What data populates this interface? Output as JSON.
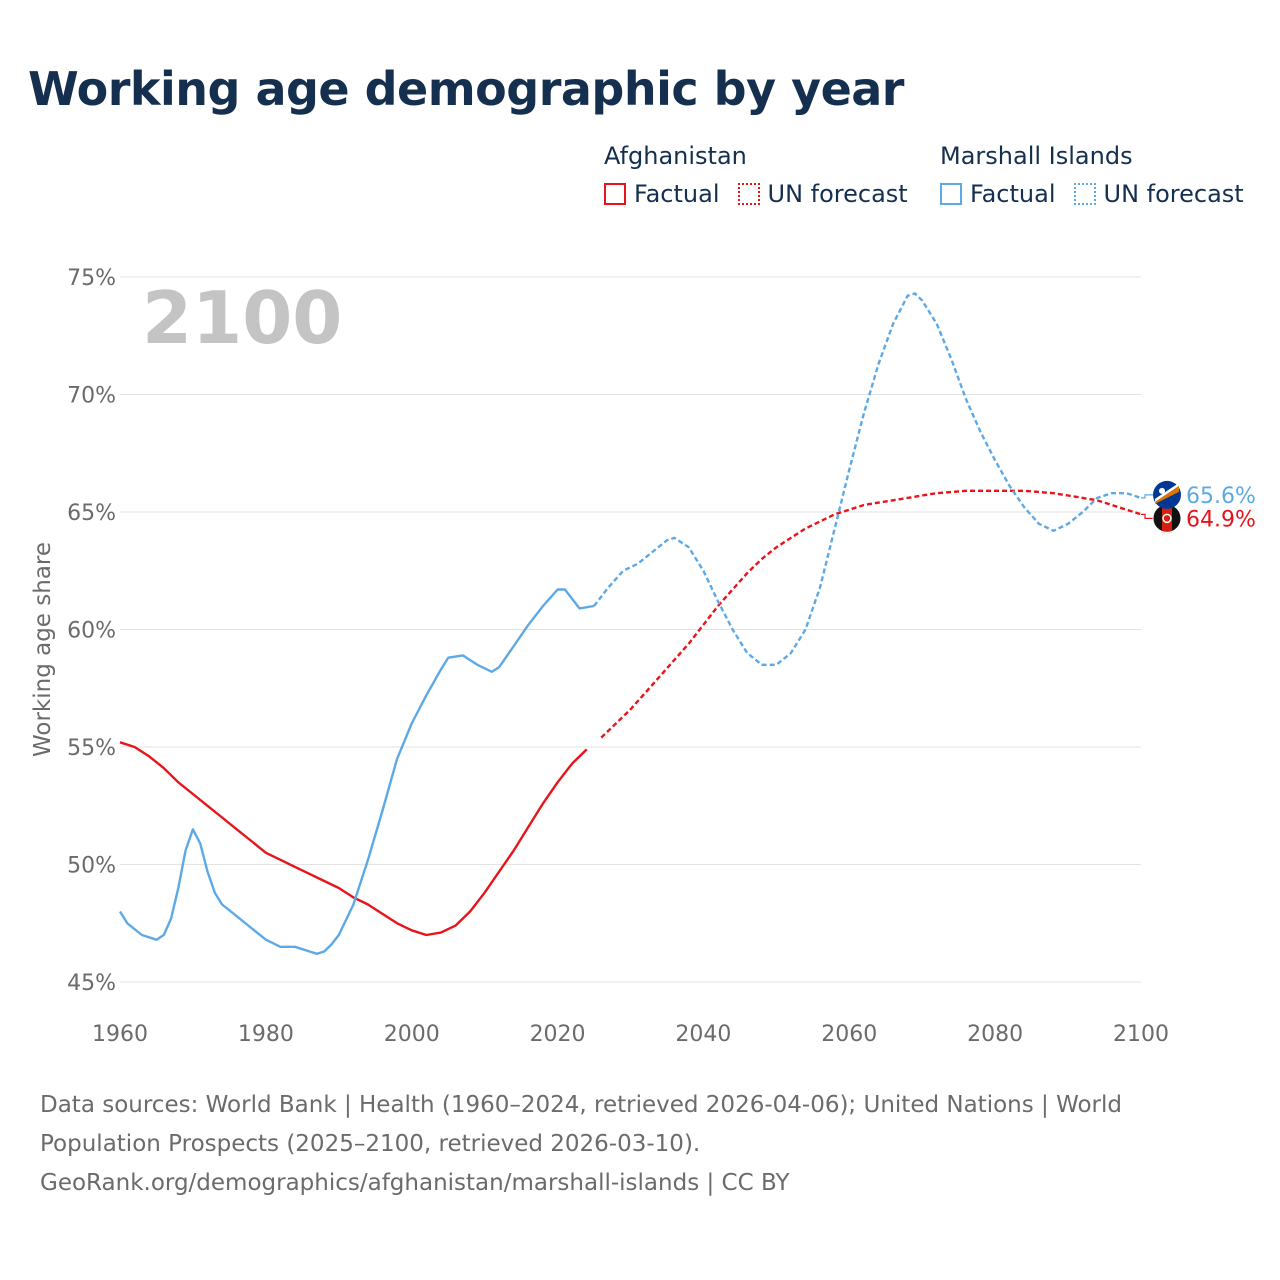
{
  "title": "Working age demographic by year",
  "legend": {
    "groups": [
      {
        "name": "Afghanistan",
        "factual": "Factual",
        "forecast": "UN forecast",
        "color": "#e8141b"
      },
      {
        "name": "Marshall Islands",
        "factual": "Factual",
        "forecast": "UN forecast",
        "color": "#5da9e6"
      }
    ]
  },
  "year_watermark": "2100",
  "sources": {
    "line1": "Data sources: World Bank | Health (1960–2024, retrieved 2026-04-06); United Nations | World",
    "line2": "Population Prospects (2025–2100, retrieved 2026-03-10).",
    "line3": "GeoRank.org/demographics/afghanistan/marshall-islands | CC BY"
  },
  "chart_data": {
    "type": "line",
    "ylabel": "Working age share",
    "xlabel": "",
    "xlim": [
      1960,
      2100
    ],
    "ylim": [
      45,
      75
    ],
    "x_ticks": [
      "1960",
      "1980",
      "2000",
      "2020",
      "2040",
      "2060",
      "2080",
      "2100"
    ],
    "y_ticks": [
      "45%",
      "50%",
      "55%",
      "60%",
      "65%",
      "70%",
      "75%"
    ],
    "forecast_start": 2025,
    "series": [
      {
        "name": "Afghanistan",
        "color": "#e8141b",
        "end_label": "64.9%",
        "points": [
          [
            1960,
            55.2
          ],
          [
            1962,
            55.0
          ],
          [
            1964,
            54.6
          ],
          [
            1966,
            54.1
          ],
          [
            1968,
            53.5
          ],
          [
            1970,
            53.0
          ],
          [
            1972,
            52.5
          ],
          [
            1974,
            52.0
          ],
          [
            1976,
            51.5
          ],
          [
            1978,
            51.0
          ],
          [
            1980,
            50.5
          ],
          [
            1982,
            50.2
          ],
          [
            1984,
            49.9
          ],
          [
            1986,
            49.6
          ],
          [
            1988,
            49.3
          ],
          [
            1990,
            49.0
          ],
          [
            1992,
            48.6
          ],
          [
            1994,
            48.3
          ],
          [
            1996,
            47.9
          ],
          [
            1998,
            47.5
          ],
          [
            2000,
            47.2
          ],
          [
            2002,
            47.0
          ],
          [
            2004,
            47.1
          ],
          [
            2006,
            47.4
          ],
          [
            2008,
            48.0
          ],
          [
            2010,
            48.8
          ],
          [
            2012,
            49.7
          ],
          [
            2014,
            50.6
          ],
          [
            2016,
            51.6
          ],
          [
            2018,
            52.6
          ],
          [
            2020,
            53.5
          ],
          [
            2022,
            54.3
          ],
          [
            2024,
            54.9
          ],
          [
            2026,
            55.4
          ],
          [
            2028,
            56.0
          ],
          [
            2030,
            56.6
          ],
          [
            2032,
            57.3
          ],
          [
            2034,
            58.0
          ],
          [
            2036,
            58.7
          ],
          [
            2038,
            59.4
          ],
          [
            2040,
            60.2
          ],
          [
            2042,
            61.0
          ],
          [
            2044,
            61.7
          ],
          [
            2046,
            62.4
          ],
          [
            2048,
            63.0
          ],
          [
            2050,
            63.5
          ],
          [
            2052,
            63.9
          ],
          [
            2054,
            64.3
          ],
          [
            2056,
            64.6
          ],
          [
            2058,
            64.9
          ],
          [
            2060,
            65.1
          ],
          [
            2062,
            65.3
          ],
          [
            2064,
            65.4
          ],
          [
            2066,
            65.5
          ],
          [
            2068,
            65.6
          ],
          [
            2070,
            65.7
          ],
          [
            2072,
            65.8
          ],
          [
            2074,
            65.85
          ],
          [
            2076,
            65.9
          ],
          [
            2078,
            65.9
          ],
          [
            2080,
            65.9
          ],
          [
            2082,
            65.9
          ],
          [
            2084,
            65.9
          ],
          [
            2086,
            65.85
          ],
          [
            2088,
            65.8
          ],
          [
            2090,
            65.7
          ],
          [
            2092,
            65.6
          ],
          [
            2094,
            65.5
          ],
          [
            2096,
            65.3
          ],
          [
            2098,
            65.1
          ],
          [
            2100,
            64.9
          ]
        ]
      },
      {
        "name": "Marshall Islands",
        "color": "#5da9e6",
        "end_label": "65.6%",
        "points": [
          [
            1960,
            48.0
          ],
          [
            1961,
            47.5
          ],
          [
            1963,
            47.0
          ],
          [
            1965,
            46.8
          ],
          [
            1966,
            47.0
          ],
          [
            1967,
            47.7
          ],
          [
            1968,
            49.0
          ],
          [
            1969,
            50.6
          ],
          [
            1970,
            51.5
          ],
          [
            1971,
            50.9
          ],
          [
            1972,
            49.7
          ],
          [
            1973,
            48.8
          ],
          [
            1974,
            48.3
          ],
          [
            1976,
            47.8
          ],
          [
            1978,
            47.3
          ],
          [
            1980,
            46.8
          ],
          [
            1982,
            46.5
          ],
          [
            1984,
            46.5
          ],
          [
            1986,
            46.3
          ],
          [
            1987,
            46.2
          ],
          [
            1988,
            46.3
          ],
          [
            1989,
            46.6
          ],
          [
            1990,
            47.0
          ],
          [
            1992,
            48.3
          ],
          [
            1994,
            50.2
          ],
          [
            1996,
            52.3
          ],
          [
            1998,
            54.5
          ],
          [
            2000,
            56.0
          ],
          [
            2002,
            57.2
          ],
          [
            2004,
            58.3
          ],
          [
            2005,
            58.8
          ],
          [
            2007,
            58.9
          ],
          [
            2009,
            58.5
          ],
          [
            2011,
            58.2
          ],
          [
            2012,
            58.4
          ],
          [
            2014,
            59.3
          ],
          [
            2016,
            60.2
          ],
          [
            2018,
            61.0
          ],
          [
            2020,
            61.7
          ],
          [
            2021,
            61.7
          ],
          [
            2023,
            60.9
          ],
          [
            2025,
            61.0
          ],
          [
            2027,
            61.8
          ],
          [
            2029,
            62.5
          ],
          [
            2031,
            62.8
          ],
          [
            2033,
            63.3
          ],
          [
            2035,
            63.8
          ],
          [
            2036,
            63.9
          ],
          [
            2038,
            63.5
          ],
          [
            2040,
            62.5
          ],
          [
            2042,
            61.2
          ],
          [
            2044,
            60.0
          ],
          [
            2046,
            59.0
          ],
          [
            2048,
            58.5
          ],
          [
            2050,
            58.5
          ],
          [
            2052,
            59.0
          ],
          [
            2054,
            60.0
          ],
          [
            2056,
            61.8
          ],
          [
            2058,
            64.3
          ],
          [
            2060,
            66.8
          ],
          [
            2062,
            69.2
          ],
          [
            2064,
            71.3
          ],
          [
            2066,
            73.0
          ],
          [
            2068,
            74.2
          ],
          [
            2069,
            74.3
          ],
          [
            2070,
            74.0
          ],
          [
            2072,
            73.0
          ],
          [
            2074,
            71.5
          ],
          [
            2076,
            69.8
          ],
          [
            2078,
            68.4
          ],
          [
            2080,
            67.2
          ],
          [
            2082,
            66.1
          ],
          [
            2084,
            65.2
          ],
          [
            2086,
            64.5
          ],
          [
            2088,
            64.2
          ],
          [
            2090,
            64.5
          ],
          [
            2092,
            65.0
          ],
          [
            2094,
            65.6
          ],
          [
            2096,
            65.8
          ],
          [
            2098,
            65.8
          ],
          [
            2100,
            65.6
          ]
        ]
      }
    ]
  }
}
